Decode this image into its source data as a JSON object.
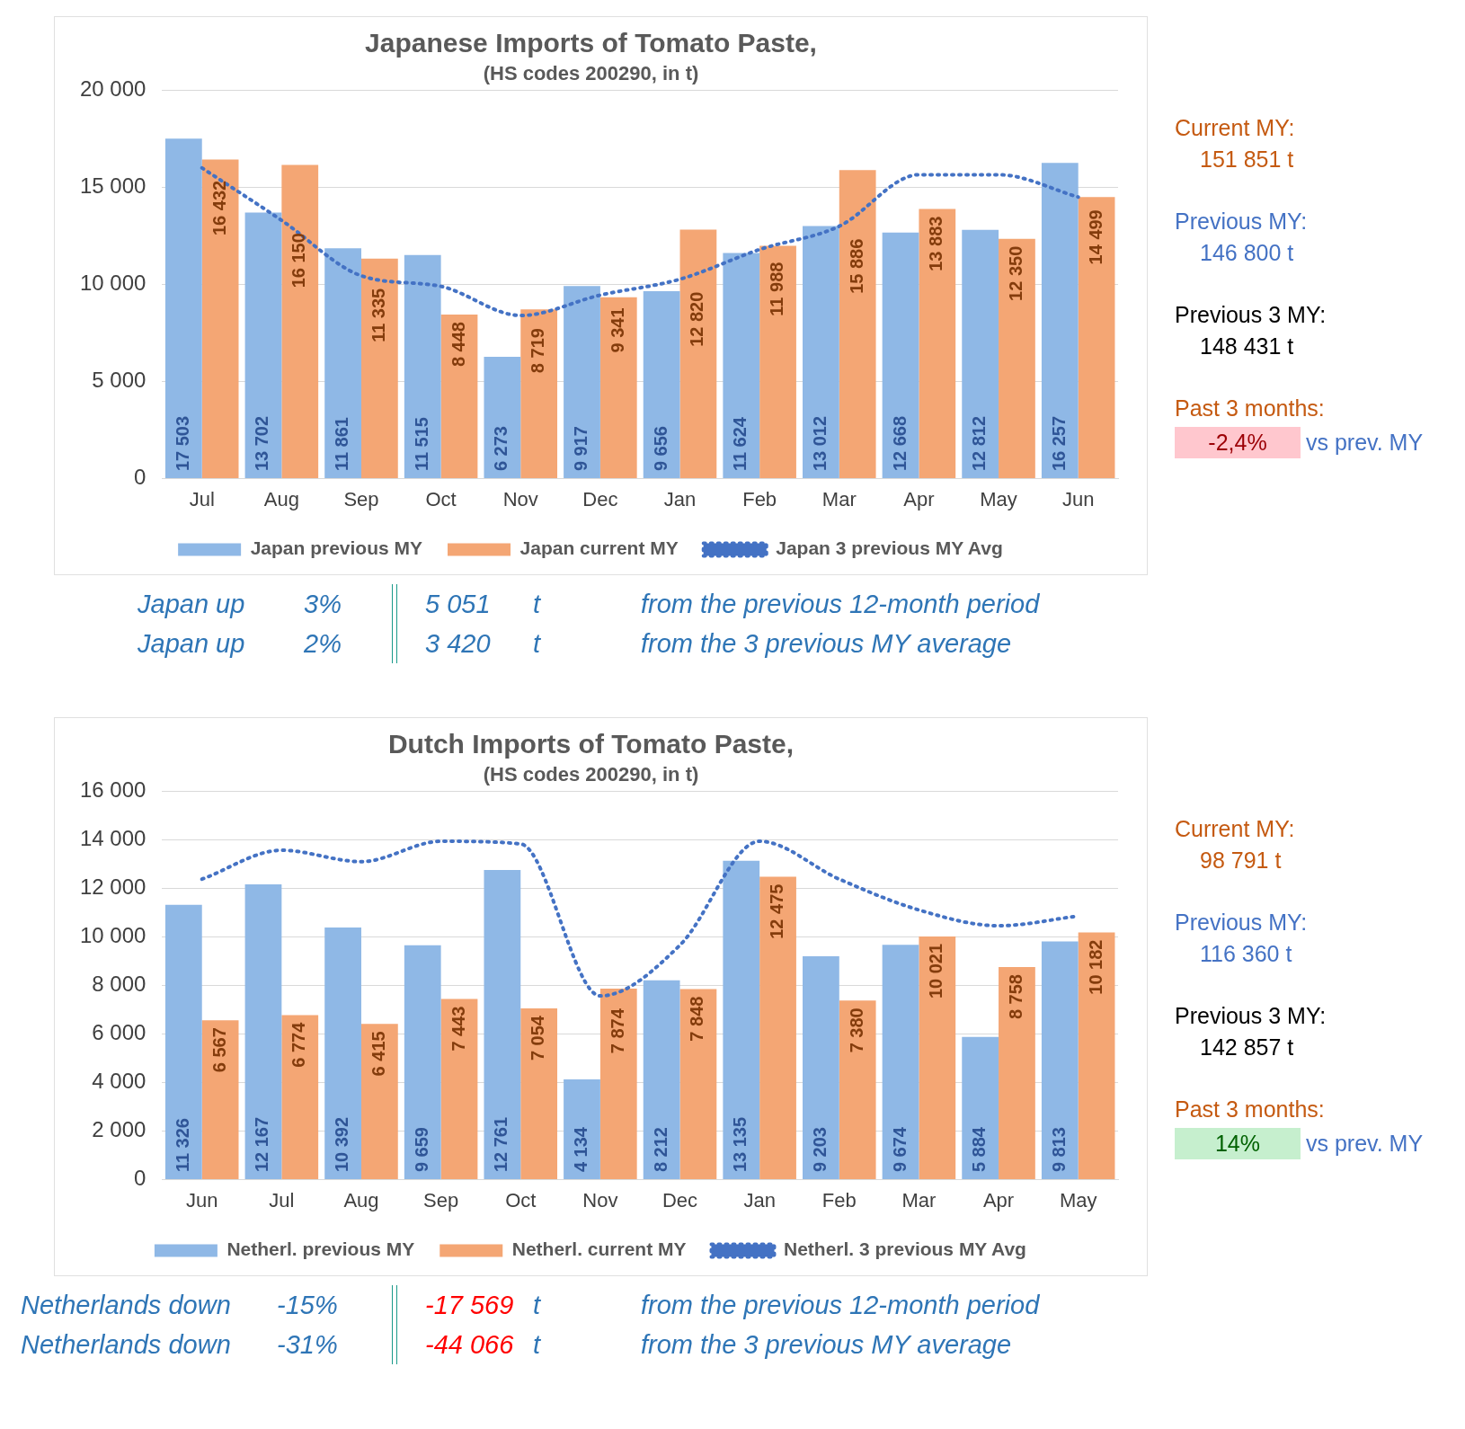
{
  "chart_data": [
    {
      "type": "bar",
      "title": "Japanese Imports of Tomato Paste,",
      "subtitle": "(HS codes 200290, in t)",
      "categories": [
        "Jul",
        "Aug",
        "Sep",
        "Oct",
        "Nov",
        "Dec",
        "Jan",
        "Feb",
        "Mar",
        "Apr",
        "May",
        "Jun"
      ],
      "series": [
        {
          "name": "Japan previous MY",
          "type": "bar",
          "color": "#8fb8e6",
          "values": [
            17503,
            13702,
            11861,
            11515,
            6273,
            9917,
            9656,
            11624,
            13012,
            12668,
            12812,
            16257
          ],
          "value_labels": [
            "17 503",
            "13 702",
            "11 861",
            "11 515",
            "6 273",
            "9 917",
            "9 656",
            "11 624",
            "13 012",
            "12 668",
            "12 812",
            "16 257"
          ]
        },
        {
          "name": "Japan current MY",
          "type": "bar",
          "color": "#f4a674",
          "values": [
            16432,
            16150,
            11335,
            8448,
            8719,
            9341,
            12820,
            11988,
            15886,
            13883,
            12350,
            14499
          ],
          "value_labels": [
            "16 432",
            "16 150",
            "11 335",
            "8 448",
            "8 719",
            "9 341",
            "12 820",
            "11 988",
            "15 886",
            "13 883",
            "12 350",
            "14 499"
          ]
        },
        {
          "name": "Japan 3 previous MY Avg",
          "type": "line",
          "color": "#4472c4",
          "line_style": "dotted",
          "marker": "none",
          "values": [
            16000,
            13300,
            10450,
            9900,
            8400,
            9450,
            10270,
            11800,
            13000,
            15650,
            15650,
            14500
          ]
        }
      ],
      "ylim": [
        0,
        20000
      ],
      "yticks": [
        {
          "value": 0,
          "label": "0"
        },
        {
          "value": 5000,
          "label": "5 000"
        },
        {
          "value": 10000,
          "label": "10 000"
        },
        {
          "value": 15000,
          "label": "15 000"
        },
        {
          "value": 20000,
          "label": "20 000"
        }
      ],
      "grid": "y",
      "legend": "bottom",
      "annotations": [
        "Current MY:",
        "151 851 t",
        "Previous MY:",
        "146 800 t",
        "Previous 3 MY:",
        "148 431 t",
        "Past 3 months:",
        "-2,4%",
        "vs prev. MY",
        "Japan up",
        "3%",
        "5 051",
        "t",
        "from the previous 12-month period",
        "Japan up",
        "2%",
        "3 420",
        "t",
        "from the 3 previous MY average"
      ]
    },
    {
      "type": "bar",
      "title": "Dutch Imports of Tomato Paste,",
      "subtitle": "(HS codes 200290, in t)",
      "categories": [
        "Jun",
        "Jul",
        "Aug",
        "Sep",
        "Oct",
        "Nov",
        "Dec",
        "Jan",
        "Feb",
        "Mar",
        "Apr",
        "May"
      ],
      "series": [
        {
          "name": "Netherl. previous MY",
          "type": "bar",
          "color": "#8fb8e6",
          "values": [
            11326,
            12167,
            10392,
            9659,
            12761,
            4134,
            8212,
            13135,
            9203,
            9674,
            5884,
            9813
          ],
          "value_labels": [
            "11 326",
            "12 167",
            "10 392",
            "9 659",
            "12 761",
            "4 134",
            "8 212",
            "13 135",
            "9 203",
            "9 674",
            "5 884",
            "9 813"
          ]
        },
        {
          "name": "Netherl. current MY",
          "type": "bar",
          "color": "#f4a674",
          "values": [
            6567,
            6774,
            6415,
            7443,
            7054,
            7874,
            7848,
            12475,
            7380,
            10021,
            8758,
            10182
          ],
          "value_labels": [
            "6 567",
            "6 774",
            "6 415",
            "7 443",
            "7 054",
            "7 874",
            "7 848",
            "12 475",
            "7 380",
            "10 021",
            "8 758",
            "10 182"
          ]
        },
        {
          "name": "Netherl. 3 previous MY Avg",
          "type": "line",
          "color": "#4472c4",
          "line_style": "dotted",
          "marker": "none",
          "values": [
            12380,
            13570,
            13100,
            13940,
            13830,
            7570,
            9660,
            13940,
            12380,
            11110,
            10460,
            10860
          ]
        }
      ],
      "ylim": [
        0,
        16000
      ],
      "yticks": [
        {
          "value": 0,
          "label": "0"
        },
        {
          "value": 2000,
          "label": "2 000"
        },
        {
          "value": 4000,
          "label": "4 000"
        },
        {
          "value": 6000,
          "label": "6 000"
        },
        {
          "value": 8000,
          "label": "8 000"
        },
        {
          "value": 10000,
          "label": "10 000"
        },
        {
          "value": 12000,
          "label": "12 000"
        },
        {
          "value": 14000,
          "label": "14 000"
        },
        {
          "value": 16000,
          "label": "16 000"
        }
      ],
      "grid": "y",
      "legend": "bottom",
      "annotations": [
        "Current MY:",
        "98 791 t",
        "Previous MY:",
        "116 360 t",
        "Previous 3 MY:",
        "142 857 t",
        "Past 3 months:",
        "14%",
        "vs prev. MY",
        "Netherlands down",
        "-15%",
        "-17 569",
        "t",
        "from the previous 12-month period",
        "Netherlands down",
        "-31%",
        "-44 066",
        "t",
        "from the 3 previous MY average"
      ]
    }
  ]
}
